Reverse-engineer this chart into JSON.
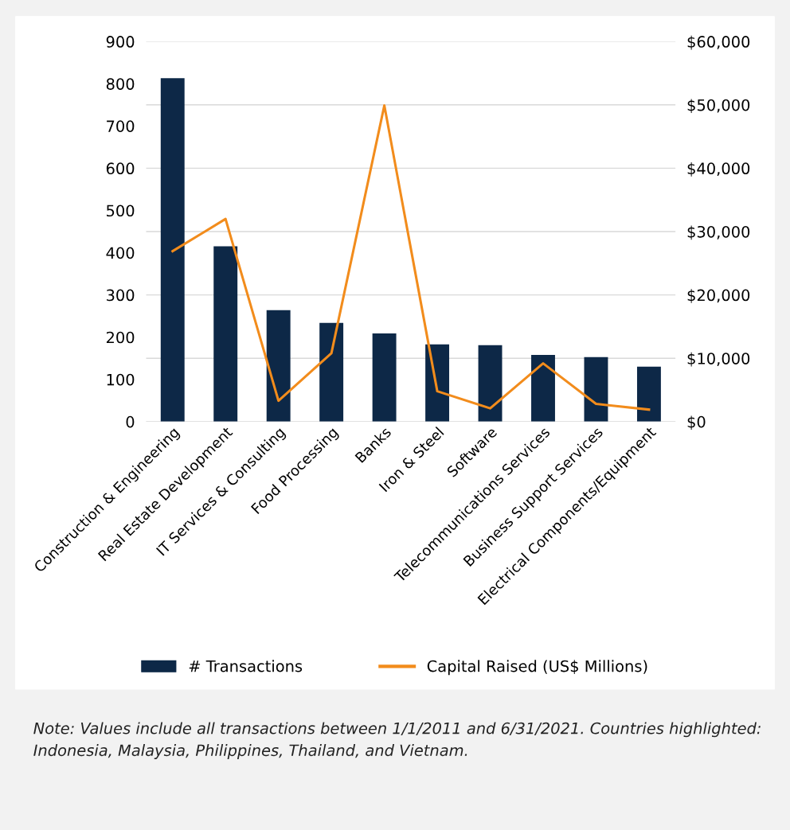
{
  "chart_data": {
    "type": "bar",
    "categories": [
      "Construction & Engineering",
      "Real Estate Development",
      "IT Services & Consulting",
      "Food Processing",
      "Banks",
      "Iron & Steel",
      "Software",
      "Telecommunications Services",
      "Business Support Services",
      "Electrical Components/Equipment"
    ],
    "series": [
      {
        "name": "# Transactions",
        "color": "#0d2847",
        "values": [
          813,
          415,
          264,
          234,
          209,
          183,
          181,
          158,
          153,
          130
        ]
      },
      {
        "name": "Capital Raised (US$ Millions)",
        "type": "line",
        "axis": "y2",
        "color": "#f28c1c",
        "values": [
          26900,
          32000,
          3300,
          10800,
          49900,
          4800,
          2100,
          9200,
          2800,
          1900
        ]
      }
    ],
    "ylim": [
      0,
      900
    ],
    "yticks": [
      0,
      100,
      200,
      300,
      400,
      500,
      600,
      700,
      800,
      900
    ],
    "y2lim": [
      0,
      60000
    ],
    "y2ticks": [
      {
        "value": 0,
        "label": "$0"
      },
      {
        "value": 10000,
        "label": "$10,000"
      },
      {
        "value": 20000,
        "label": "$20,000"
      },
      {
        "value": 30000,
        "label": "$30,000"
      },
      {
        "value": 40000,
        "label": "$40,000"
      },
      {
        "value": 50000,
        "label": "$50,000"
      },
      {
        "value": 60000,
        "label": "$60,000"
      }
    ],
    "grid": "y",
    "legend": "bottom",
    "marker": "none",
    "line_style": "solid",
    "annotations": [
      "Note: Values include all transactions between 1/1/2011 and 6/31/2021. Countries highlighted: Indonesia, Malaysia, Philippines, Thailand, and Vietnam."
    ]
  }
}
